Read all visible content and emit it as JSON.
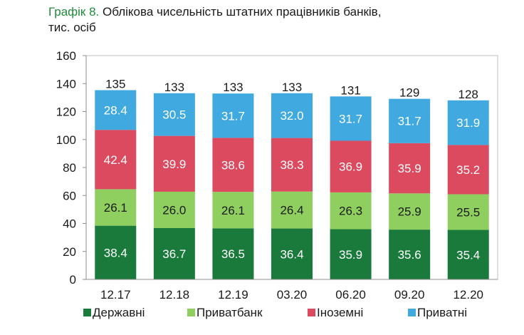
{
  "title": {
    "prefix": "Графік 8.",
    "text": "Облікова чисельність штатних працівників банків,",
    "unit": "тис. осіб"
  },
  "chart_data": {
    "type": "bar",
    "stacked": true,
    "categories": [
      "12.17",
      "12.18",
      "12.19",
      "03.20",
      "06.20",
      "09.20",
      "12.20"
    ],
    "series": [
      {
        "name": "Державні",
        "color": "#1a7a3c",
        "label_color": "#ffffff",
        "values": [
          38.4,
          36.7,
          36.5,
          36.4,
          35.9,
          35.6,
          35.4
        ]
      },
      {
        "name": "Приватбанк",
        "color": "#8fcf5f",
        "label_color": "#1a1a1a",
        "values": [
          26.1,
          26.0,
          26.1,
          26.4,
          26.3,
          25.9,
          25.5
        ]
      },
      {
        "name": "Іноземні",
        "color": "#db4a5f",
        "label_color": "#ffffff",
        "values": [
          42.4,
          39.9,
          38.6,
          38.3,
          36.9,
          35.9,
          35.2
        ]
      },
      {
        "name": "Приватні",
        "color": "#3fa9e0",
        "label_color": "#ffffff",
        "values": [
          28.4,
          30.5,
          31.7,
          32.0,
          31.7,
          31.7,
          31.9
        ]
      }
    ],
    "totals": [
      135,
      133,
      133,
      133,
      131,
      129,
      128
    ],
    "ylim": [
      0,
      160
    ],
    "yticks": [
      0,
      20,
      40,
      60,
      80,
      100,
      120,
      140,
      160
    ],
    "grid": false,
    "legend": "bottom",
    "plot_background": "#ffffff"
  }
}
